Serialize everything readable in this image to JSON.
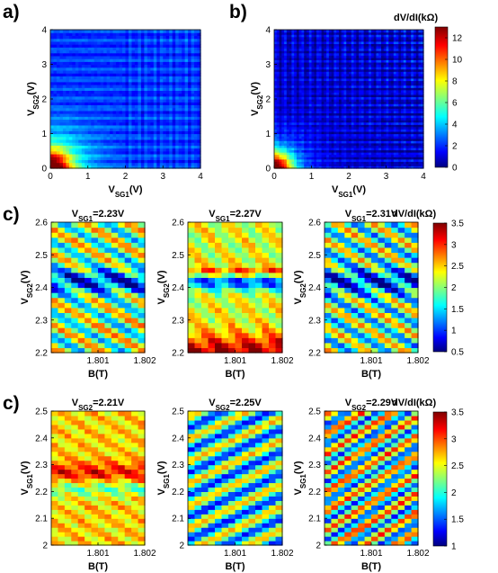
{
  "colorscale": [
    "#00007f",
    "#0000ff",
    "#007fff",
    "#00ffff",
    "#7fff7f",
    "#ffff00",
    "#ff7f00",
    "#ff0000",
    "#7f0000"
  ],
  "chart_data": [
    {
      "id": "a",
      "panel_label": "a)",
      "type": "heatmap",
      "x_axis": {
        "name": "V",
        "sub": "SG1",
        "unit": "(V)",
        "ticks": [
          "0",
          "1",
          "2",
          "3",
          "4"
        ],
        "range": [
          0,
          4
        ]
      },
      "y_axis": {
        "name": "V",
        "sub": "SG2",
        "unit": "(V)",
        "ticks": [
          "0",
          "1",
          "2",
          "3",
          "4"
        ],
        "range": [
          0,
          4
        ]
      },
      "colorbar": null,
      "description_values": {
        "high_region": "V_SG1<0.5, V_SG2<0.5 ~ 11-12 kOhm",
        "background": "~2-3 kOhm"
      }
    },
    {
      "id": "b",
      "panel_label": "b)",
      "type": "heatmap",
      "x_axis": {
        "name": "V",
        "sub": "SG1",
        "unit": "(V)",
        "ticks": [
          "0",
          "1",
          "2",
          "3",
          "4"
        ],
        "range": [
          0,
          4
        ]
      },
      "y_axis": {
        "name": "V",
        "sub": "SG2",
        "unit": "(V)",
        "ticks": [
          "0",
          "1",
          "2",
          "3",
          "4"
        ],
        "range": [
          0,
          4
        ]
      },
      "colorbar": {
        "label": "dV/dI(kΩ)",
        "ticks": [
          "0",
          "2",
          "4",
          "6",
          "8",
          "10",
          "12"
        ],
        "range": [
          0,
          13
        ]
      }
    },
    {
      "id": "c1",
      "panel_label": "c)",
      "type": "heatmap",
      "title": {
        "name": "V",
        "sub": "SG1",
        "rest": "=2.23V"
      },
      "x_axis": {
        "label": "B(T)",
        "ticks": [
          "1.801",
          "1.802"
        ],
        "range": [
          1.8,
          1.802
        ]
      },
      "y_axis": {
        "name": "V",
        "sub": "SG2",
        "unit": "(V)",
        "ticks": [
          "2.2",
          "2.3",
          "2.4",
          "2.5",
          "2.6"
        ],
        "range": [
          2.2,
          2.6
        ]
      }
    },
    {
      "id": "c2",
      "type": "heatmap",
      "title": {
        "name": "V",
        "sub": "SG1",
        "rest": "=2.27V"
      },
      "x_axis": {
        "label": "B(T)",
        "ticks": [
          "1.801",
          "1.802"
        ],
        "range": [
          1.8,
          1.802
        ]
      },
      "y_axis": {
        "name": "V",
        "sub": "SG2",
        "unit": "(V)",
        "ticks": [
          "2.2",
          "2.3",
          "2.4",
          "2.5",
          "2.6"
        ],
        "range": [
          2.2,
          2.6
        ]
      }
    },
    {
      "id": "c3",
      "type": "heatmap",
      "title": {
        "name": "V",
        "sub": "SG1",
        "rest": "=2.31V"
      },
      "x_axis": {
        "label": "B(T)",
        "ticks": [
          "1.801",
          "1.802"
        ],
        "range": [
          1.8,
          1.802
        ]
      },
      "y_axis": {
        "name": "V",
        "sub": "SG2",
        "unit": "(V)",
        "ticks": [
          "2.2",
          "2.3",
          "2.4",
          "2.5",
          "2.6"
        ],
        "range": [
          2.2,
          2.6
        ]
      },
      "colorbar": {
        "label": "dV/dI(kΩ)",
        "ticks": [
          "0.5",
          "1",
          "1.5",
          "2",
          "2.5",
          "3",
          "3.5"
        ],
        "range": [
          0.5,
          3.5
        ]
      }
    },
    {
      "id": "d1",
      "panel_label": "c)",
      "type": "heatmap",
      "title": {
        "name": "V",
        "sub": "SG2",
        "rest": "=2.21V"
      },
      "x_axis": {
        "label": "B(T)",
        "ticks": [
          "1.801",
          "1.802"
        ],
        "range": [
          1.8,
          1.802
        ]
      },
      "y_axis": {
        "name": "V",
        "sub": "SG1",
        "unit": "(V)",
        "ticks": [
          "2",
          "2.1",
          "2.2",
          "2.3",
          "2.4",
          "2.5"
        ],
        "range": [
          2.0,
          2.5
        ]
      }
    },
    {
      "id": "d2",
      "type": "heatmap",
      "title": {
        "name": "V",
        "sub": "SG2",
        "rest": "=2.25V"
      },
      "x_axis": {
        "label": "B(T)",
        "ticks": [
          "1.801",
          "1.802"
        ],
        "range": [
          1.8,
          1.802
        ]
      },
      "y_axis": {
        "name": "V",
        "sub": "SG1",
        "unit": "(V)",
        "ticks": [
          "2",
          "2.1",
          "2.2",
          "2.3",
          "2.4",
          "2.5"
        ],
        "range": [
          2.0,
          2.5
        ]
      }
    },
    {
      "id": "d3",
      "type": "heatmap",
      "title": {
        "name": "V",
        "sub": "SG2",
        "rest": "=2.29V"
      },
      "x_axis": {
        "label": "B(T)",
        "ticks": [
          "1.801",
          "1.802"
        ],
        "range": [
          1.8,
          1.802
        ]
      },
      "y_axis": {
        "name": "V",
        "sub": "SG1",
        "unit": "(V)",
        "ticks": [
          "2",
          "2.1",
          "2.2",
          "2.3",
          "2.4",
          "2.5"
        ],
        "range": [
          2.0,
          2.5
        ]
      },
      "colorbar": {
        "label": "dV/dI(kΩ)",
        "ticks": [
          "1",
          "1.5",
          "2",
          "2.5",
          "3",
          "3.5"
        ],
        "range": [
          1.0,
          3.5
        ]
      }
    }
  ]
}
